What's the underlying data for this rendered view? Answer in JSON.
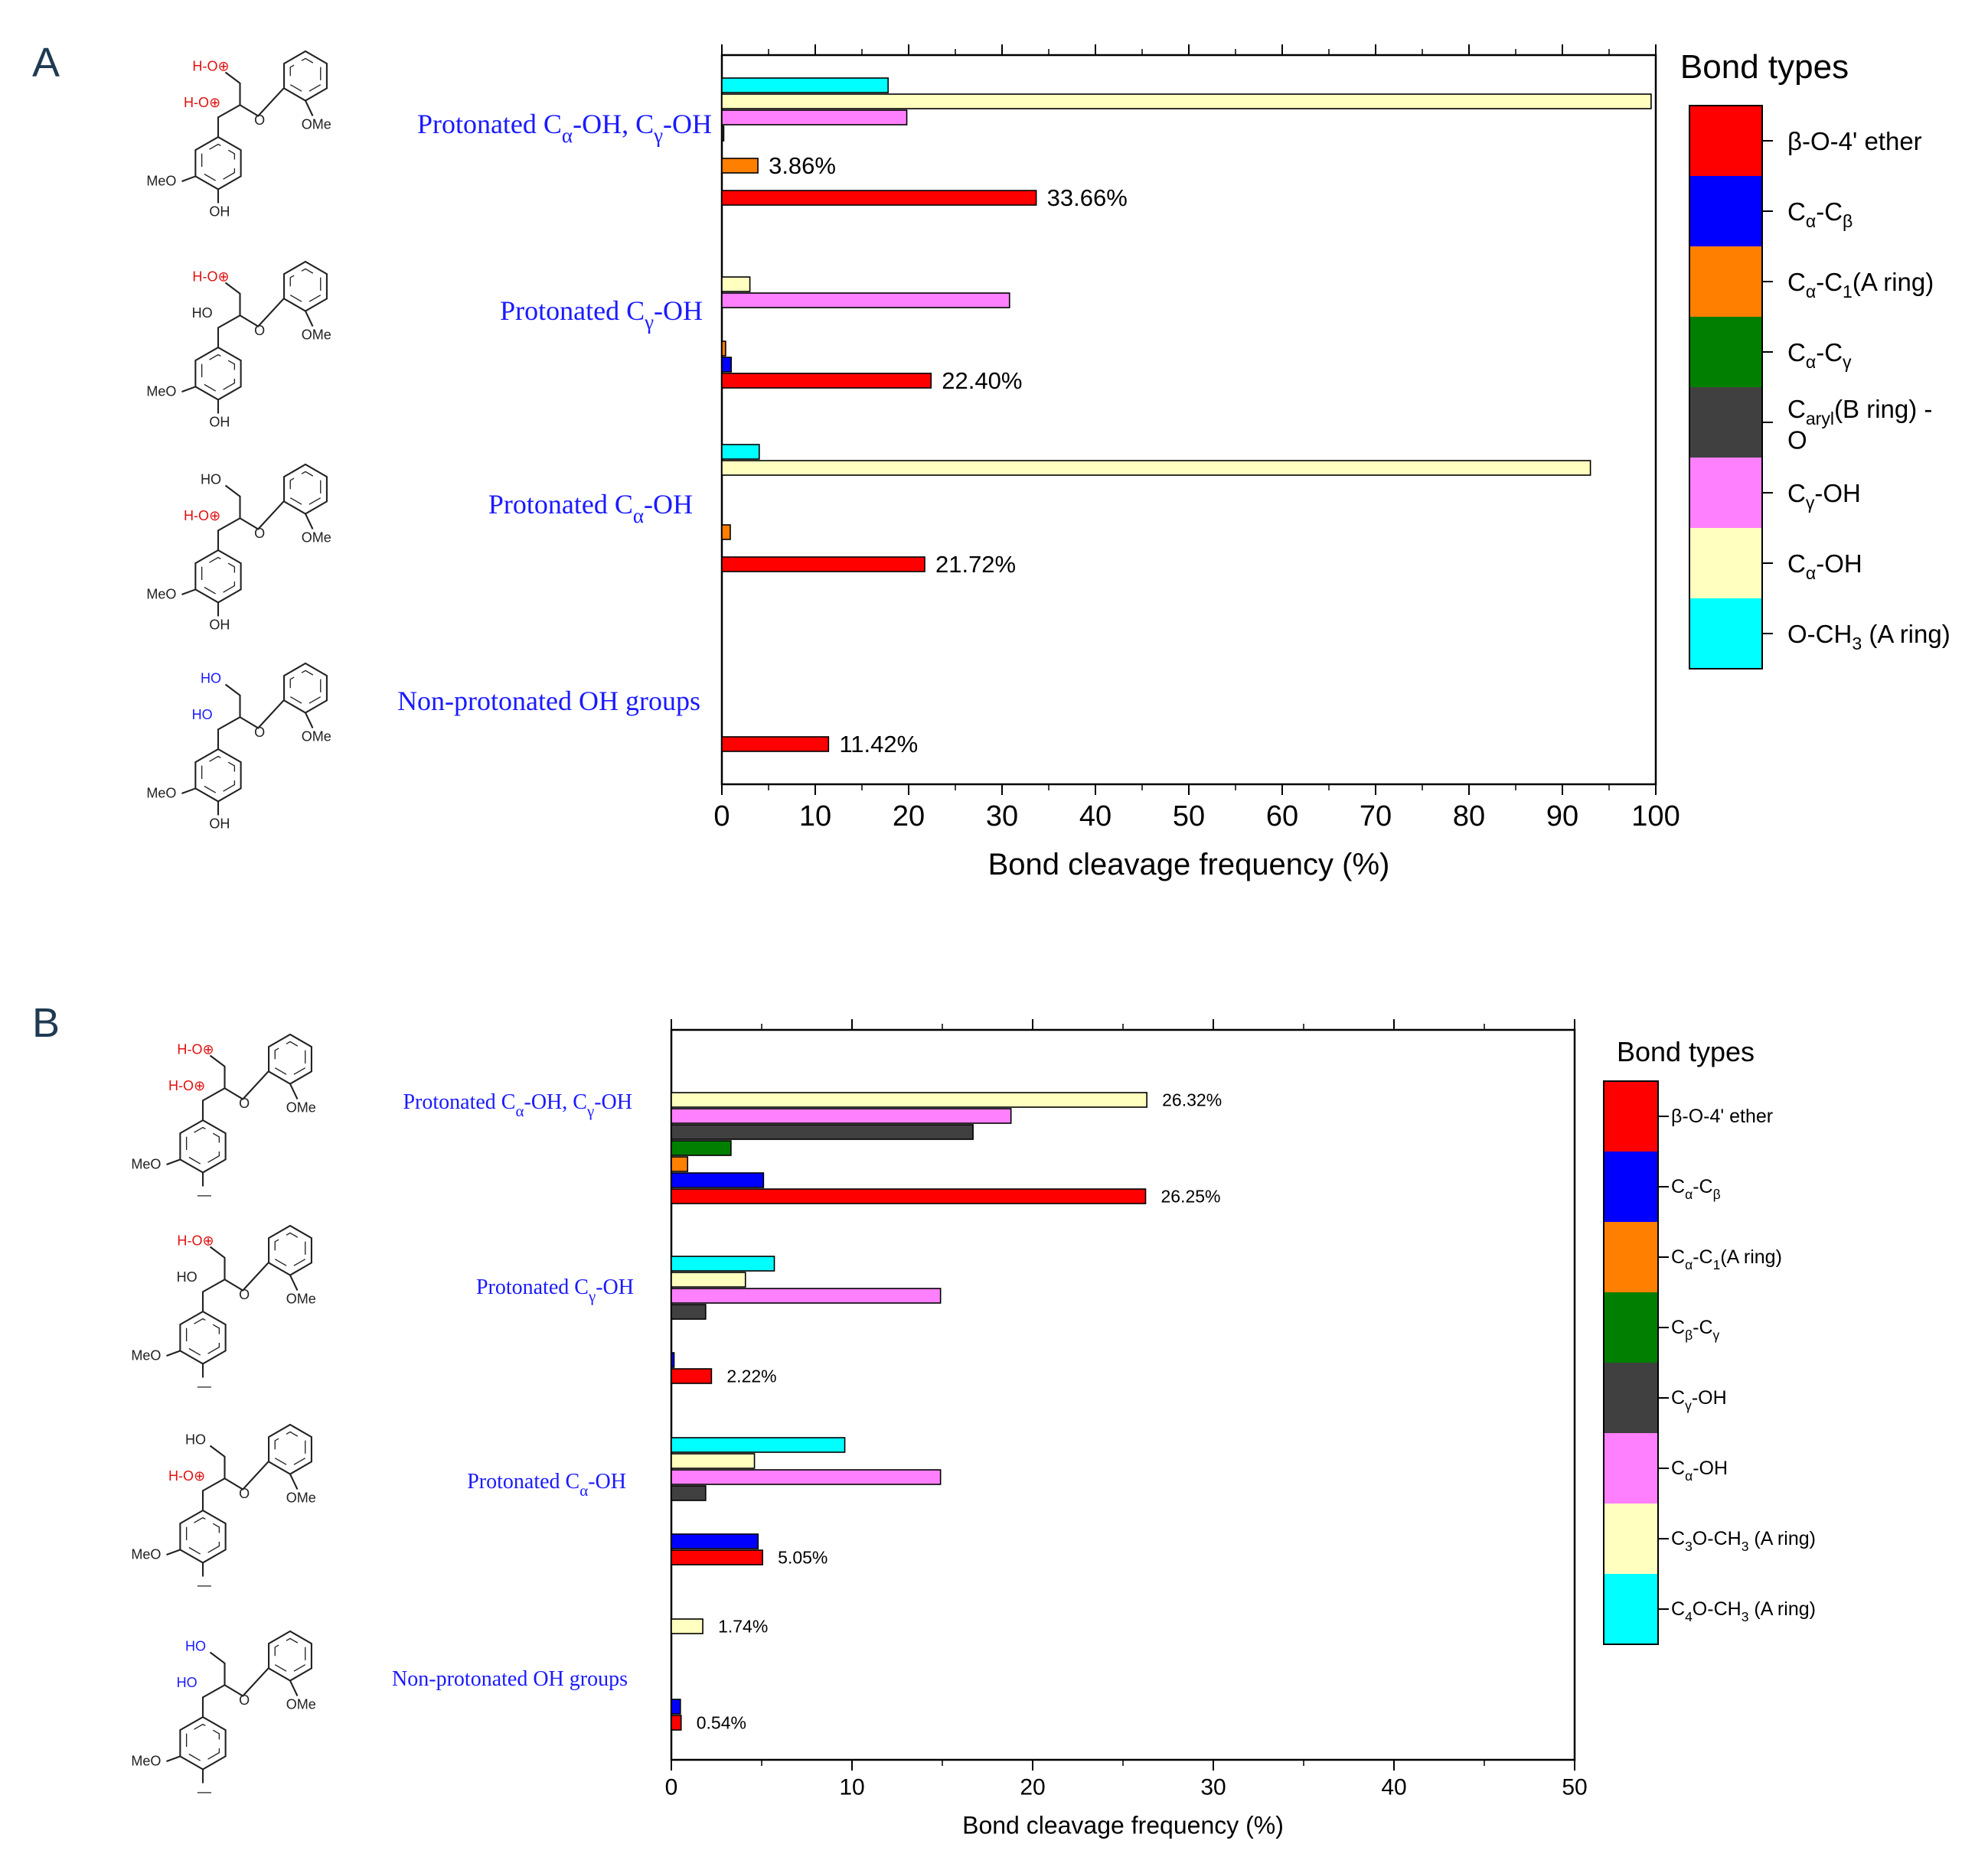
{
  "chart_data": [
    {
      "panel": "A",
      "type": "bar",
      "orientation": "horizontal",
      "xlabel": "Bond cleavage frequency (%)",
      "xlim": [
        0,
        100
      ],
      "xticks": [
        "0",
        "10",
        "20",
        "30",
        "40",
        "50",
        "60",
        "70",
        "80",
        "90",
        "100"
      ],
      "legend_title": "Bond types",
      "legend_position": "right",
      "series": [
        {
          "name": "β-O-4' ether",
          "color": "#ff0000"
        },
        {
          "name": "Cα-Cβ",
          "color": "#0000ff"
        },
        {
          "name": "Cα-C1(A ring)",
          "color": "#ff7f00"
        },
        {
          "name": "Cα-Cγ",
          "color": "#007f00"
        },
        {
          "name": "Caryl(B ring) - O",
          "color": "#404040"
        },
        {
          "name": "Cγ-OH",
          "color": "#ff80ff"
        },
        {
          "name": "Cα-OH",
          "color": "#ffffc0"
        },
        {
          "name": "O-CH3 (A ring)",
          "color": "#00ffff"
        }
      ],
      "categories": [
        {
          "label": "Protonated Cα-OH,  Cγ-OH",
          "values": {
            "β-O-4' ether": 33.66,
            "Cα-Cβ": 0,
            "Cα-C1(A ring)": 3.86,
            "Cα-Cγ": 0,
            "Caryl(B ring) - O": 0.2,
            "Cγ-OH": 19.8,
            "Cα-OH": 99.5,
            "O-CH3 (A ring)": 17.8
          },
          "data_labels": {
            "β-O-4' ether": "33.66%",
            "Cα-C1(A ring)": "3.86%"
          }
        },
        {
          "label": "Protonated Cγ-OH",
          "values": {
            "β-O-4' ether": 22.4,
            "Cα-Cβ": 1.0,
            "Cα-C1(A ring)": 0.4,
            "Cα-Cγ": 0,
            "Caryl(B ring) - O": 0,
            "Cγ-OH": 30.8,
            "Cα-OH": 3.0,
            "O-CH3 (A ring)": 0
          },
          "data_labels": {
            "β-O-4' ether": "22.40%"
          }
        },
        {
          "label": "Protonated Cα-OH",
          "values": {
            "β-O-4' ether": 21.72,
            "Cα-Cβ": 0,
            "Cα-C1(A ring)": 0.9,
            "Cα-Cγ": 0,
            "Caryl(B ring) - O": 0,
            "Cγ-OH": 0,
            "Cα-OH": 93.0,
            "O-CH3 (A ring)": 4.0
          },
          "data_labels": {
            "β-O-4' ether": "21.72%"
          }
        },
        {
          "label": "Non-protonated OH groups",
          "values": {
            "β-O-4' ether": 11.42,
            "Cα-Cβ": 0,
            "Cα-C1(A ring)": 0,
            "Cα-Cγ": 0,
            "Caryl(B ring) - O": 0,
            "Cγ-OH": 0,
            "Cα-OH": 0,
            "O-CH3 (A ring)": 0
          },
          "data_labels": {
            "β-O-4' ether": "11.42%"
          }
        }
      ]
    },
    {
      "panel": "B",
      "type": "bar",
      "orientation": "horizontal",
      "xlabel": "Bond cleavage frequency (%)",
      "xlim": [
        0,
        50
      ],
      "xticks": [
        "0",
        "10",
        "20",
        "30",
        "40",
        "50"
      ],
      "legend_title": "Bond types",
      "legend_position": "right",
      "series": [
        {
          "name": "β-O-4' ether",
          "color": "#ff0000"
        },
        {
          "name": "Cα-Cβ",
          "color": "#0000ff"
        },
        {
          "name": "Cα-C1(A ring)",
          "color": "#ff7f00"
        },
        {
          "name": "Cβ-Cγ",
          "color": "#007f00"
        },
        {
          "name": "Cγ-OH",
          "color": "#404040"
        },
        {
          "name": "Cα-OH",
          "color": "#ff80ff"
        },
        {
          "name": "C3O-CH3 (A ring)",
          "color": "#ffffc0"
        },
        {
          "name": "C4O-CH3 (A ring)",
          "color": "#00ffff"
        }
      ],
      "categories": [
        {
          "label": "Protonated Cα-OH,  Cγ-OH",
          "values": {
            "β-O-4' ether": 26.25,
            "Cα-Cβ": 5.1,
            "Cα-C1(A ring)": 0.9,
            "Cβ-Cγ": 3.3,
            "Cγ-OH": 16.7,
            "Cα-OH": 18.8,
            "C3O-CH3 (A ring)": 26.32,
            "C4O-CH3 (A ring)": 0
          },
          "data_labels": {
            "β-O-4' ether": "26.25%",
            "C3O-CH3 (A ring)": "26.32%"
          }
        },
        {
          "label": "Protonated Cγ-OH",
          "values": {
            "β-O-4' ether": 2.22,
            "Cα-Cβ": 0.15,
            "Cα-C1(A ring)": 0,
            "Cβ-Cγ": 0,
            "Cγ-OH": 1.9,
            "Cα-OH": 14.9,
            "C3O-CH3 (A ring)": 4.1,
            "C4O-CH3 (A ring)": 5.7
          },
          "data_labels": {
            "β-O-4' ether": "2.22%"
          }
        },
        {
          "label": "Protonated Cα-OH",
          "values": {
            "β-O-4' ether": 5.05,
            "Cα-Cβ": 4.8,
            "Cα-C1(A ring)": 0,
            "Cβ-Cγ": 0,
            "Cγ-OH": 1.9,
            "Cα-OH": 14.9,
            "C3O-CH3 (A ring)": 4.6,
            "C4O-CH3 (A ring)": 9.6
          },
          "data_labels": {
            "β-O-4' ether": "5.05%"
          }
        },
        {
          "label": "Non-protonated OH groups",
          "values": {
            "β-O-4' ether": 0.54,
            "Cα-Cβ": 0.5,
            "Cα-C1(A ring)": 0,
            "Cβ-Cγ": 0,
            "Cγ-OH": 0,
            "Cα-OH": 0,
            "C3O-CH3 (A ring)": 1.74,
            "C4O-CH3 (A ring)": 0
          },
          "data_labels": {
            "β-O-4' ether": "0.54%",
            "C3O-CH3 (A ring)": "1.74%"
          }
        }
      ]
    }
  ],
  "panels": [
    {
      "letter": "A"
    },
    {
      "letter": "B"
    }
  ]
}
